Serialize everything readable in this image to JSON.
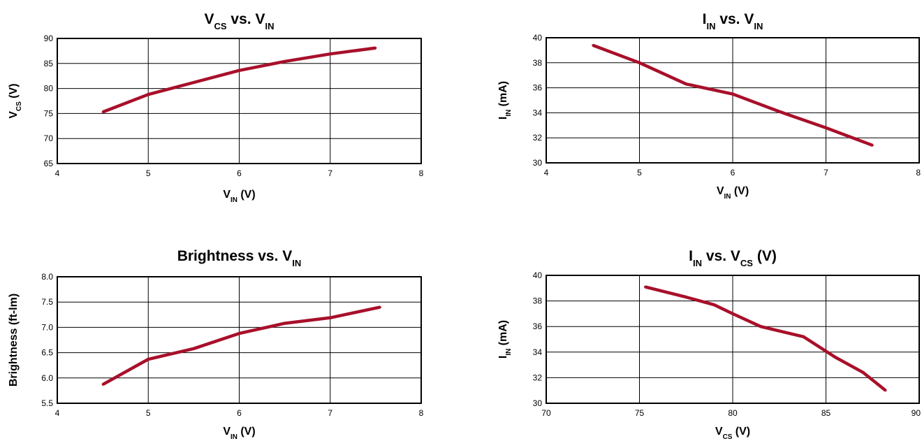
{
  "chart_data": [
    {
      "type": "line",
      "title": "V CS vs. V IN",
      "title_parts": [
        [
          "V",
          ""
        ],
        [
          "CS",
          "sub"
        ],
        [
          " vs. V",
          ""
        ],
        [
          "IN",
          "sub"
        ]
      ],
      "xlabel_parts": [
        [
          "V",
          ""
        ],
        [
          "IN",
          "sub"
        ],
        [
          " (V)",
          ""
        ]
      ],
      "ylabel_parts": [
        [
          "V",
          ""
        ],
        [
          "CS",
          "sub"
        ],
        [
          " (V)",
          ""
        ]
      ],
      "xlim": [
        4,
        8
      ],
      "ylim": [
        65,
        90
      ],
      "xticks": [
        "4",
        "5",
        "6",
        "7",
        "8"
      ],
      "yticks": [
        "65",
        "70",
        "75",
        "80",
        "85",
        "90"
      ],
      "grid": true,
      "series": [
        {
          "color": "#a8102a",
          "x": [
            4.5,
            5.0,
            5.5,
            6.0,
            6.5,
            7.0,
            7.5
          ],
          "y": [
            75.3,
            78.8,
            81.2,
            83.6,
            85.4,
            86.9,
            88.1
          ]
        }
      ]
    },
    {
      "type": "line",
      "title_parts": [
        [
          "I",
          ""
        ],
        [
          "IN",
          "sub"
        ],
        [
          " vs. V",
          ""
        ],
        [
          "IN",
          "sub"
        ]
      ],
      "xlabel_parts": [
        [
          "V",
          ""
        ],
        [
          "IN",
          "sub"
        ],
        [
          " (V)",
          ""
        ]
      ],
      "ylabel_parts": [
        [
          "I",
          ""
        ],
        [
          "IN",
          "sub"
        ],
        [
          " (mA)",
          ""
        ]
      ],
      "xlim": [
        4,
        8
      ],
      "ylim": [
        30,
        40
      ],
      "xticks": [
        "4",
        "5",
        "6",
        "7",
        "8"
      ],
      "yticks": [
        "30",
        "32",
        "34",
        "36",
        "38",
        "40"
      ],
      "grid": true,
      "series": [
        {
          "color": "#a8102a",
          "x": [
            4.5,
            5.0,
            5.5,
            6.0,
            6.5,
            7.0,
            7.5
          ],
          "y": [
            39.4,
            38.0,
            36.3,
            35.5,
            34.1,
            32.8,
            31.4
          ]
        }
      ]
    },
    {
      "type": "line",
      "title_parts": [
        [
          "Brightness vs. V",
          ""
        ],
        [
          "IN",
          "sub"
        ]
      ],
      "xlabel_parts": [
        [
          "V",
          ""
        ],
        [
          "IN",
          "sub"
        ],
        [
          " (V)",
          ""
        ]
      ],
      "ylabel_parts": [
        [
          "Brightness (ft-lm)",
          ""
        ]
      ],
      "xlim": [
        4,
        8
      ],
      "ylim": [
        5.5,
        8.0
      ],
      "xticks": [
        "4",
        "5",
        "6",
        "7",
        "8"
      ],
      "yticks": [
        "5.5",
        "6.0",
        "6.5",
        "7.0",
        "7.5",
        "8.0"
      ],
      "grid": true,
      "series": [
        {
          "color": "#a8102a",
          "x": [
            4.5,
            5.0,
            5.5,
            6.0,
            6.5,
            7.0,
            7.55
          ],
          "y": [
            5.87,
            6.37,
            6.58,
            6.88,
            7.08,
            7.19,
            7.4
          ]
        }
      ]
    },
    {
      "type": "line",
      "title_parts": [
        [
          "I",
          ""
        ],
        [
          "IN",
          "sub"
        ],
        [
          " vs. V",
          ""
        ],
        [
          "CS",
          "sub"
        ],
        [
          " (V)",
          ""
        ]
      ],
      "xlabel_parts": [
        [
          "V",
          ""
        ],
        [
          "CS",
          "sub"
        ],
        [
          " (V)",
          ""
        ]
      ],
      "ylabel_parts": [
        [
          "I",
          ""
        ],
        [
          "IN",
          "sub"
        ],
        [
          " (mA)",
          ""
        ]
      ],
      "xlim": [
        70,
        90
      ],
      "ylim": [
        30,
        40
      ],
      "xticks": [
        "70",
        "75",
        "80",
        "85",
        "90"
      ],
      "yticks": [
        "30",
        "32",
        "34",
        "36",
        "38",
        "40"
      ],
      "grid": true,
      "series": [
        {
          "color": "#a8102a",
          "x": [
            75.3,
            77.5,
            79.0,
            80.0,
            81.5,
            83.8,
            85.5,
            87.0,
            88.2
          ],
          "y": [
            39.1,
            38.3,
            37.7,
            37.0,
            36.0,
            35.2,
            33.6,
            32.4,
            31.0
          ]
        }
      ]
    }
  ]
}
